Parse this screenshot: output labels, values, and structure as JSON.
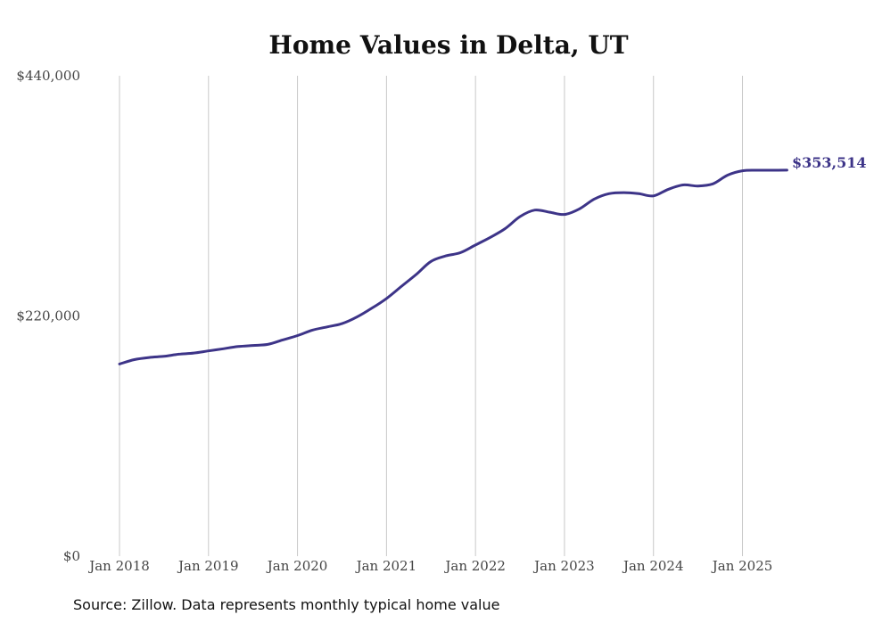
{
  "chart_data": {
    "type": "line",
    "title": "Home Values in Delta, UT",
    "xlabel": "",
    "ylabel": "",
    "ylim": [
      0,
      440000
    ],
    "xlim": [
      "2018-01",
      "2025-12"
    ],
    "y_ticks": [
      {
        "value": 0,
        "label": "$0"
      },
      {
        "value": 220000,
        "label": "$220,000"
      },
      {
        "value": 440000,
        "label": "$440,000"
      }
    ],
    "x_ticks": [
      {
        "value": "2018-01",
        "label": "Jan 2018"
      },
      {
        "value": "2019-01",
        "label": "Jan 2019"
      },
      {
        "value": "2020-01",
        "label": "Jan 2020"
      },
      {
        "value": "2021-01",
        "label": "Jan 2021"
      },
      {
        "value": "2022-01",
        "label": "Jan 2022"
      },
      {
        "value": "2023-01",
        "label": "Jan 2023"
      },
      {
        "value": "2024-01",
        "label": "Jan 2024"
      },
      {
        "value": "2025-01",
        "label": "Jan 2025"
      }
    ],
    "grid": {
      "vertical": true,
      "horizontal": false
    },
    "end_label": "$353,514",
    "series": [
      {
        "color": "#3d3488",
        "x": [
          "2018-01",
          "2018-03",
          "2018-05",
          "2018-07",
          "2018-09",
          "2018-11",
          "2019-01",
          "2019-03",
          "2019-05",
          "2019-07",
          "2019-09",
          "2019-11",
          "2020-01",
          "2020-03",
          "2020-05",
          "2020-07",
          "2020-09",
          "2020-11",
          "2021-01",
          "2021-03",
          "2021-05",
          "2021-07",
          "2021-09",
          "2021-11",
          "2022-01",
          "2022-03",
          "2022-05",
          "2022-07",
          "2022-09",
          "2022-11",
          "2023-01",
          "2023-03",
          "2023-05",
          "2023-07",
          "2023-09",
          "2023-11",
          "2024-01",
          "2024-03",
          "2024-05",
          "2024-07",
          "2024-09",
          "2024-11",
          "2025-01",
          "2025-03",
          "2025-05",
          "2025-07"
        ],
        "y": [
          176000,
          180000,
          182000,
          183000,
          185000,
          186000,
          188000,
          190000,
          192000,
          193000,
          194000,
          198000,
          202000,
          207000,
          210000,
          213000,
          219000,
          227000,
          236000,
          247000,
          258000,
          270000,
          275000,
          278000,
          285000,
          292000,
          300000,
          311000,
          317000,
          315000,
          313000,
          318000,
          327000,
          332000,
          333000,
          332000,
          330000,
          336000,
          340000,
          339000,
          341000,
          349000,
          353000,
          353500,
          353500,
          353514
        ]
      }
    ]
  },
  "footer": {
    "source_text": "Source: Zillow. Data represents monthly typical home value"
  }
}
